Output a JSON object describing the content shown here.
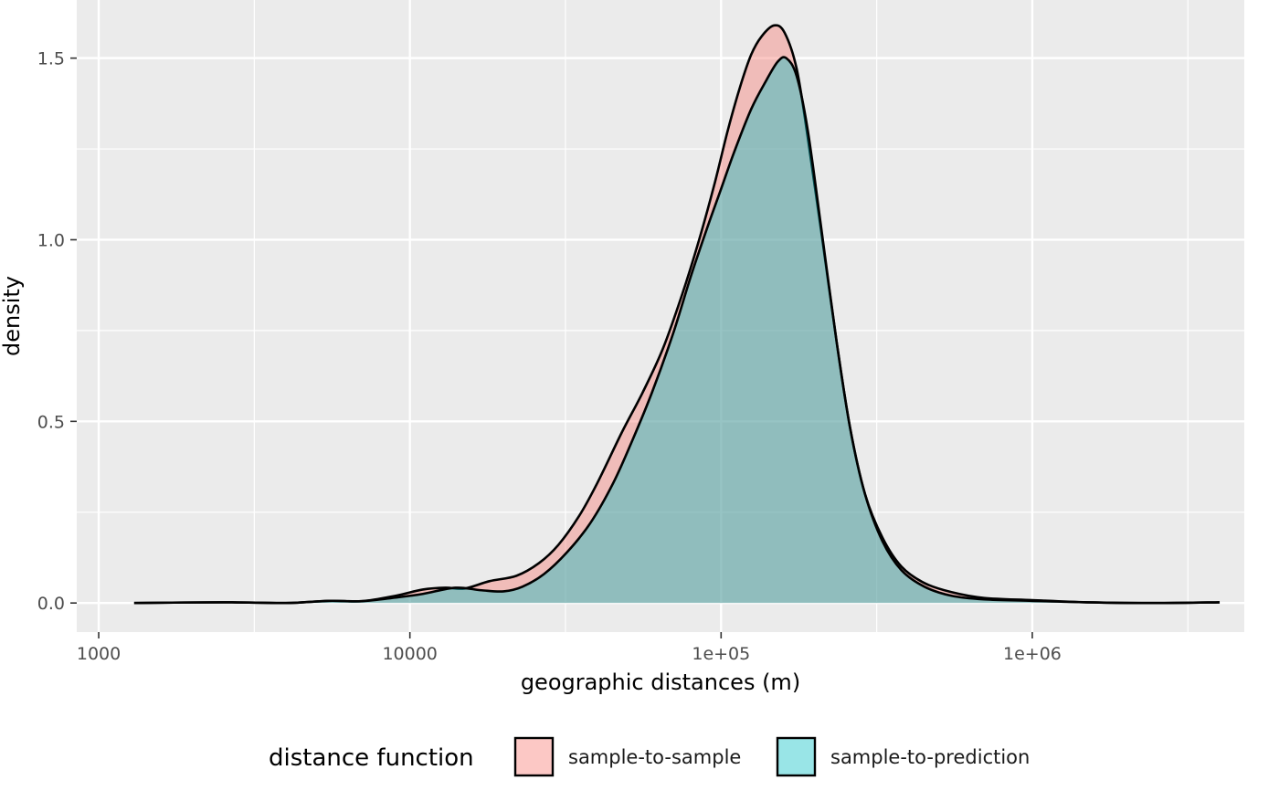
{
  "chart_data": {
    "type": "area",
    "xlabel": "geographic distances (m)",
    "ylabel": "density",
    "x_scale": "log10",
    "xlim": [
      850,
      4800000
    ],
    "ylim": [
      -0.08,
      1.66
    ],
    "x_ticks": [
      {
        "value": 1000,
        "label": "1000"
      },
      {
        "value": 10000,
        "label": "10000"
      },
      {
        "value": 100000,
        "label": "1e+05"
      },
      {
        "value": 1000000,
        "label": "1e+06"
      }
    ],
    "x_minor_ticks": [
      3162,
      31623,
      316228,
      3162278
    ],
    "y_ticks": [
      {
        "value": 0.0,
        "label": "0.0"
      },
      {
        "value": 0.5,
        "label": "0.5"
      },
      {
        "value": 1.0,
        "label": "1.0"
      },
      {
        "value": 1.5,
        "label": "1.5"
      }
    ],
    "y_minor_ticks": [
      0.25,
      0.75,
      1.25
    ],
    "grid": true,
    "panel_background": "#ebebeb",
    "legend": {
      "title": "distance function",
      "position": "bottom"
    },
    "series": [
      {
        "name": "sample-to-sample",
        "color": "#F8766D",
        "points": [
          [
            1300,
            0.0
          ],
          [
            2500,
            0.002
          ],
          [
            4000,
            0.0
          ],
          [
            5500,
            0.006
          ],
          [
            7000,
            0.005
          ],
          [
            9000,
            0.02
          ],
          [
            11000,
            0.037
          ],
          [
            13000,
            0.042
          ],
          [
            15000,
            0.04
          ],
          [
            18000,
            0.06
          ],
          [
            22000,
            0.075
          ],
          [
            26000,
            0.11
          ],
          [
            30000,
            0.16
          ],
          [
            35000,
            0.24
          ],
          [
            40000,
            0.33
          ],
          [
            48000,
            0.47
          ],
          [
            56000,
            0.58
          ],
          [
            65000,
            0.7
          ],
          [
            75000,
            0.85
          ],
          [
            85000,
            1.0
          ],
          [
            95000,
            1.15
          ],
          [
            105000,
            1.3
          ],
          [
            115000,
            1.42
          ],
          [
            125000,
            1.51
          ],
          [
            135000,
            1.56
          ],
          [
            148000,
            1.59
          ],
          [
            160000,
            1.57
          ],
          [
            175000,
            1.47
          ],
          [
            190000,
            1.28
          ],
          [
            210000,
            1.02
          ],
          [
            235000,
            0.72
          ],
          [
            260000,
            0.48
          ],
          [
            290000,
            0.3
          ],
          [
            330000,
            0.18
          ],
          [
            380000,
            0.1
          ],
          [
            450000,
            0.055
          ],
          [
            550000,
            0.03
          ],
          [
            700000,
            0.014
          ],
          [
            1000000,
            0.008
          ],
          [
            1500000,
            0.002
          ],
          [
            2500000,
            0.0
          ],
          [
            4000000,
            0.002
          ]
        ]
      },
      {
        "name": "sample-to-prediction",
        "color": "#00BFC4",
        "points": [
          [
            1300,
            0.0
          ],
          [
            2500,
            0.002
          ],
          [
            4000,
            0.0
          ],
          [
            5500,
            0.006
          ],
          [
            7000,
            0.005
          ],
          [
            9000,
            0.015
          ],
          [
            11000,
            0.025
          ],
          [
            14000,
            0.042
          ],
          [
            17000,
            0.035
          ],
          [
            20000,
            0.032
          ],
          [
            23000,
            0.045
          ],
          [
            27000,
            0.08
          ],
          [
            32000,
            0.14
          ],
          [
            38000,
            0.22
          ],
          [
            45000,
            0.33
          ],
          [
            52000,
            0.45
          ],
          [
            60000,
            0.58
          ],
          [
            70000,
            0.74
          ],
          [
            80000,
            0.9
          ],
          [
            90000,
            1.03
          ],
          [
            100000,
            1.14
          ],
          [
            110000,
            1.24
          ],
          [
            125000,
            1.36
          ],
          [
            140000,
            1.44
          ],
          [
            152000,
            1.49
          ],
          [
            162000,
            1.5
          ],
          [
            175000,
            1.45
          ],
          [
            190000,
            1.3
          ],
          [
            210000,
            1.03
          ],
          [
            235000,
            0.72
          ],
          [
            260000,
            0.48
          ],
          [
            290000,
            0.3
          ],
          [
            330000,
            0.17
          ],
          [
            380000,
            0.09
          ],
          [
            450000,
            0.045
          ],
          [
            550000,
            0.02
          ],
          [
            700000,
            0.01
          ],
          [
            1000000,
            0.006
          ],
          [
            1500000,
            0.002
          ],
          [
            2500000,
            0.0
          ],
          [
            4000000,
            0.002
          ]
        ]
      }
    ]
  }
}
